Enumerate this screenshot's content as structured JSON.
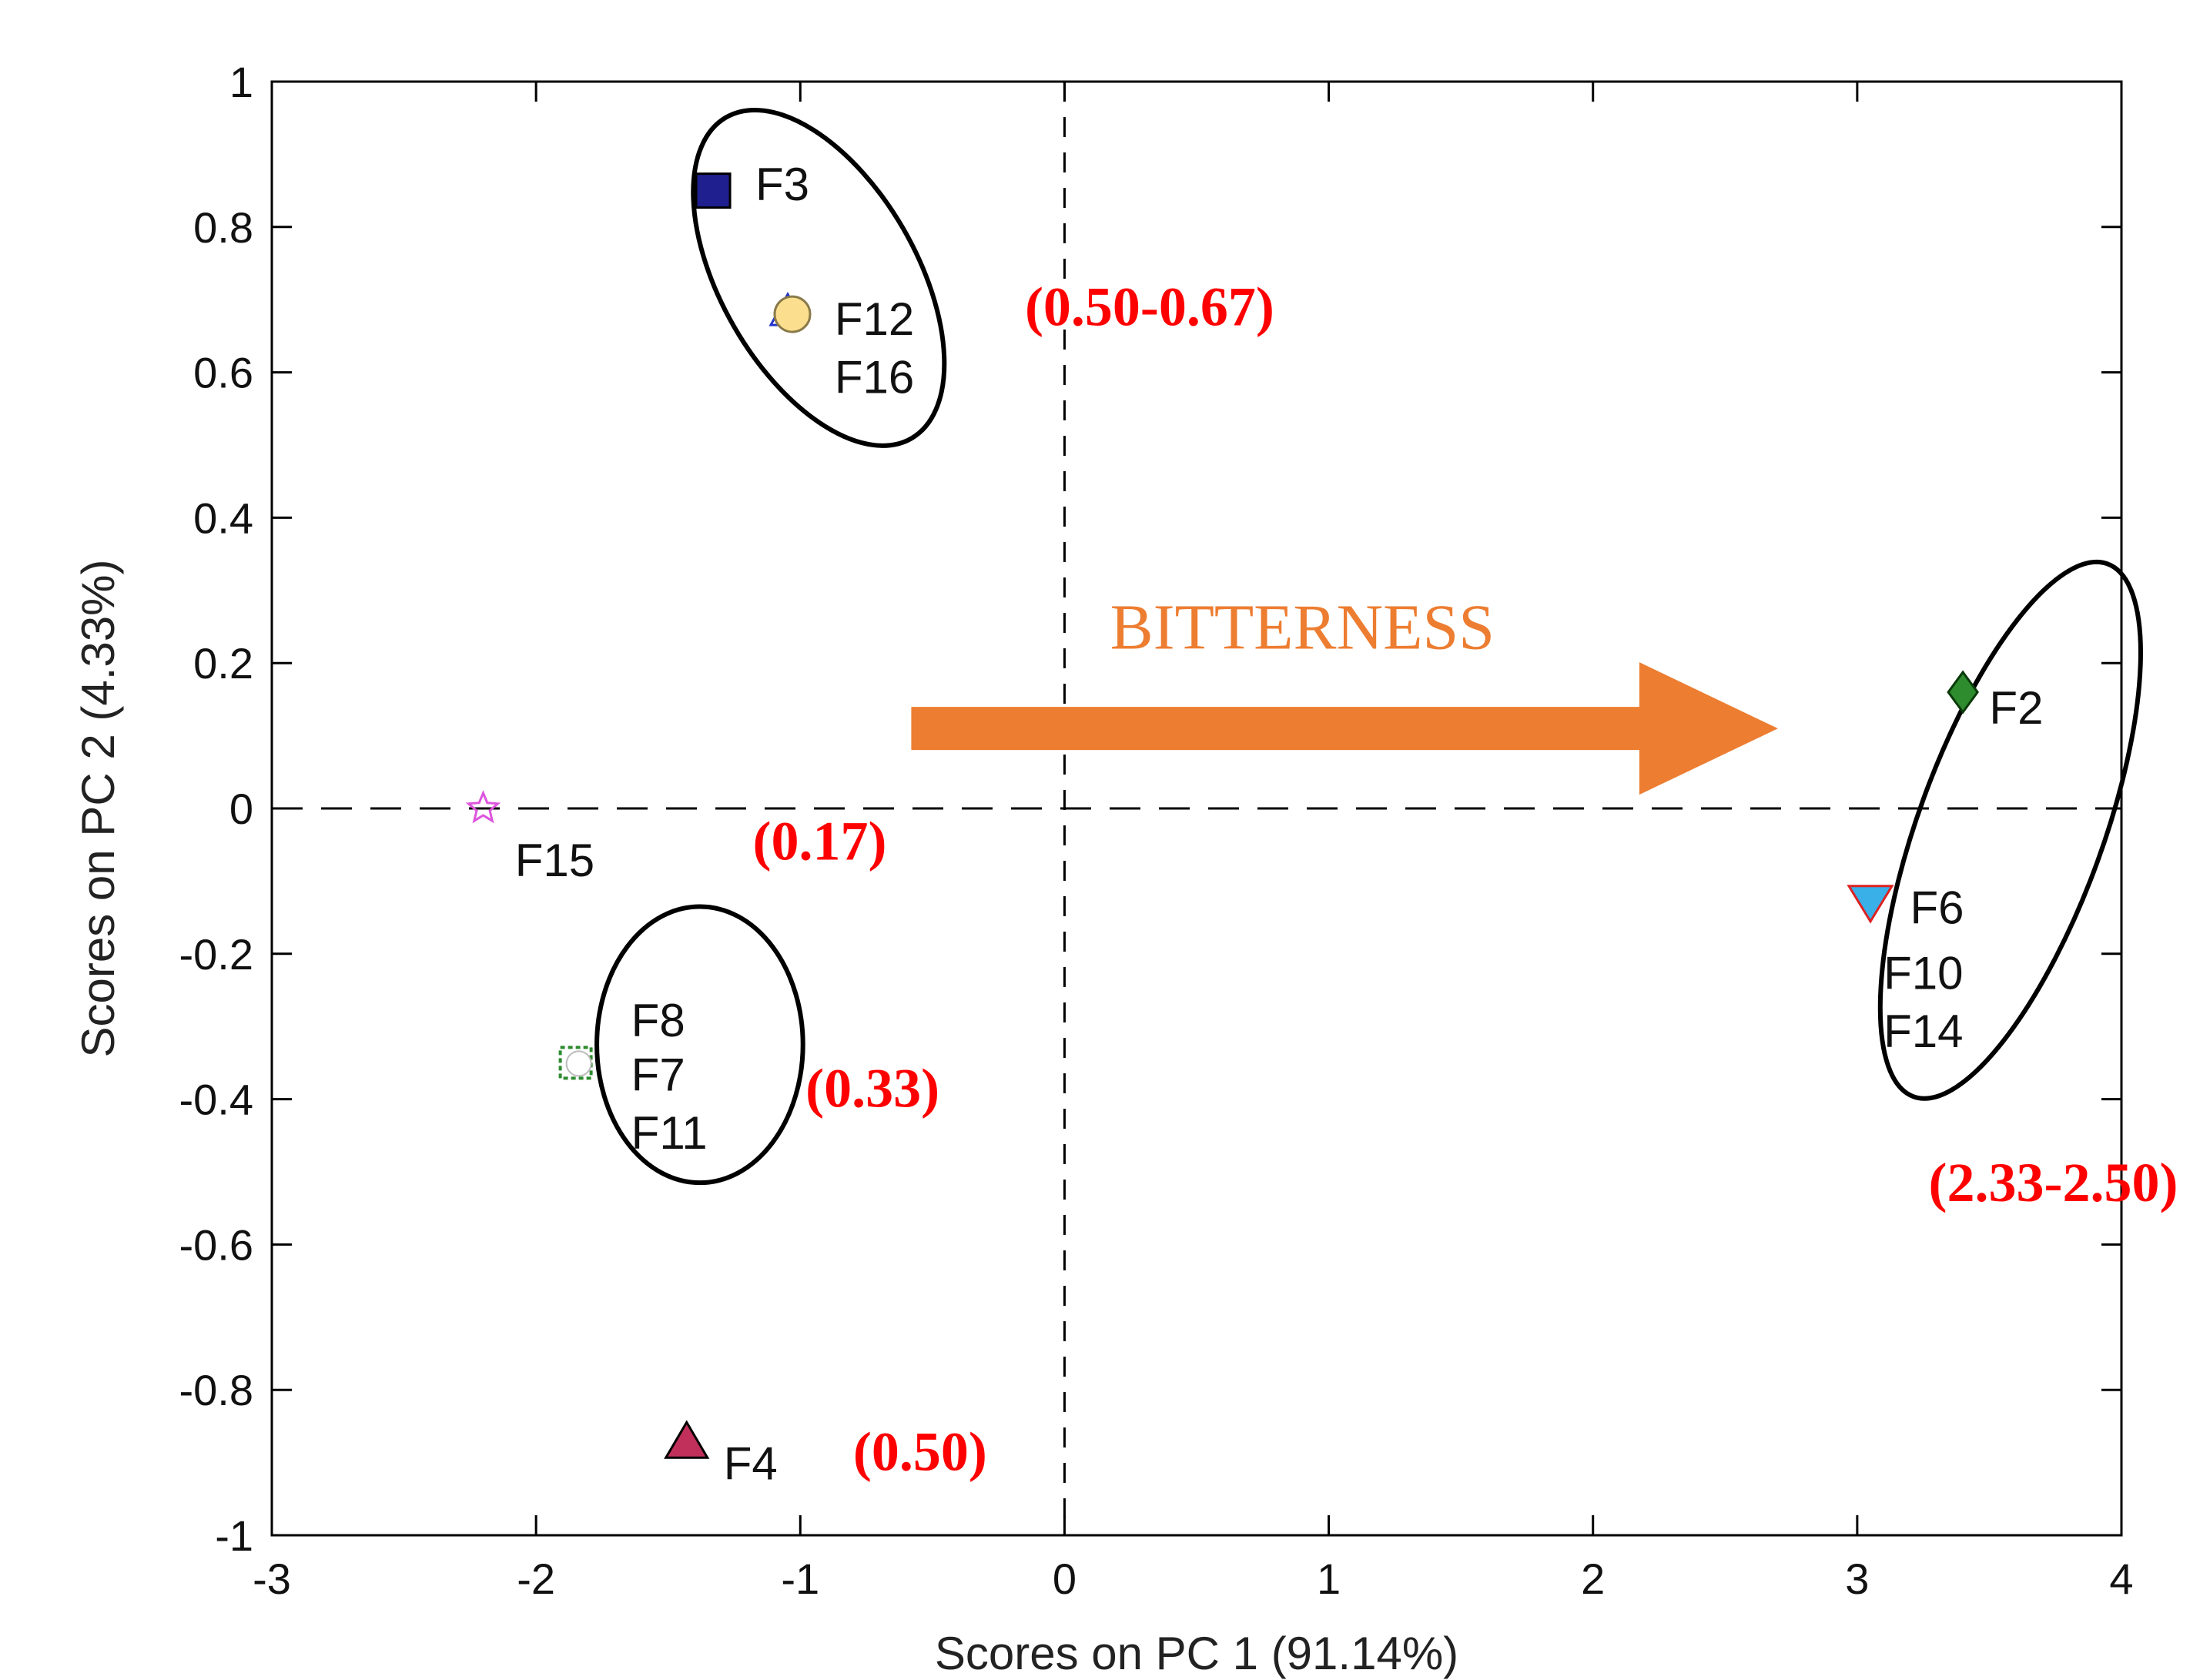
{
  "chart_data": {
    "type": "scatter",
    "title": "",
    "xlabel": "Scores on PC 1 (91.14%)",
    "ylabel": "Scores on PC 2 (4.33%)",
    "xlim": [
      -3,
      4
    ],
    "ylim": [
      -1,
      1
    ],
    "xticks": [
      "-3",
      "-2",
      "-1",
      "0",
      "1",
      "2",
      "3",
      "4"
    ],
    "yticks": [
      "-1",
      "-0.8",
      "-0.6",
      "-0.4",
      "-0.2",
      "0",
      "0.2",
      "0.4",
      "0.6",
      "0.8",
      "1"
    ],
    "reference_lines": {
      "x": 0,
      "y": 0
    },
    "points": [
      {
        "name": "F3",
        "x": -1.33,
        "y": 0.85,
        "marker": "square",
        "color": "#1f1f8f"
      },
      {
        "name": "F12",
        "x": -1.03,
        "y": 0.68,
        "marker": "circle",
        "color": "#fbdf8f"
      },
      {
        "name": "F15",
        "x": -2.2,
        "y": 0.0,
        "marker": "star",
        "color": "#dd55dd"
      },
      {
        "name": "F8",
        "x": -1.85,
        "y": -0.35,
        "marker": "square-open",
        "color": "#2e8b2e"
      },
      {
        "name": "F4",
        "x": -1.43,
        "y": -0.87,
        "marker": "triangle",
        "color": "#c0305a"
      },
      {
        "name": "F2",
        "x": 3.4,
        "y": 0.16,
        "marker": "diamond",
        "color": "#2e8b2e"
      },
      {
        "name": "F6",
        "x": 3.05,
        "y": -0.13,
        "marker": "triangle-down",
        "color": "#39b0e8"
      }
    ],
    "labels": [
      {
        "text": "F3",
        "x": -1.17,
        "y": 0.86
      },
      {
        "text": "F12",
        "x": -0.87,
        "y": 0.675
      },
      {
        "text": "F16",
        "x": -0.87,
        "y": 0.595
      },
      {
        "text": "F15",
        "x": -2.08,
        "y": -0.07
      },
      {
        "text": "F8",
        "x": -1.64,
        "y": -0.29
      },
      {
        "text": "F7",
        "x": -1.64,
        "y": -0.365
      },
      {
        "text": "F11",
        "x": -1.64,
        "y": -0.445
      },
      {
        "text": "F4",
        "x": -1.29,
        "y": -0.9
      },
      {
        "text": "F2",
        "x": 3.5,
        "y": 0.14
      },
      {
        "text": "F6",
        "x": 3.2,
        "y": -0.135
      },
      {
        "text": "F10",
        "x": 3.1,
        "y": -0.225
      },
      {
        "text": "F14",
        "x": 3.1,
        "y": -0.305
      }
    ],
    "groups": [
      {
        "name": "group-f3-f12-f16",
        "cx": -0.93,
        "cy": 0.73,
        "rx": 0.37,
        "ry": 0.255,
        "angle": -30
      },
      {
        "name": "group-f8-f7-f11",
        "cx": -1.38,
        "cy": -0.325,
        "rx": 0.39,
        "ry": 0.19,
        "angle": 0
      },
      {
        "name": "group-f2-f6-f10-f14",
        "cx": 3.58,
        "cy": -0.03,
        "rx": 0.35,
        "ry": 0.39,
        "angle": 20
      }
    ],
    "annotations": [
      {
        "text": "(0.50-0.67)",
        "x": -0.15,
        "y": 0.69
      },
      {
        "text": "(0.17)",
        "x": -1.18,
        "y": -0.045
      },
      {
        "text": "(0.33)",
        "x": -0.98,
        "y": -0.385
      },
      {
        "text": "(0.50)",
        "x": -0.8,
        "y": -0.885
      },
      {
        "text": "(2.33-2.50)",
        "x": 3.27,
        "y": -0.515
      }
    ],
    "arrow": {
      "label": "BITTERNESS",
      "from": [
        -0.58,
        0.11
      ],
      "to": [
        2.7,
        0.11
      ],
      "label_at": [
        0.9,
        0.22
      ],
      "color": "#ed7d31"
    }
  }
}
